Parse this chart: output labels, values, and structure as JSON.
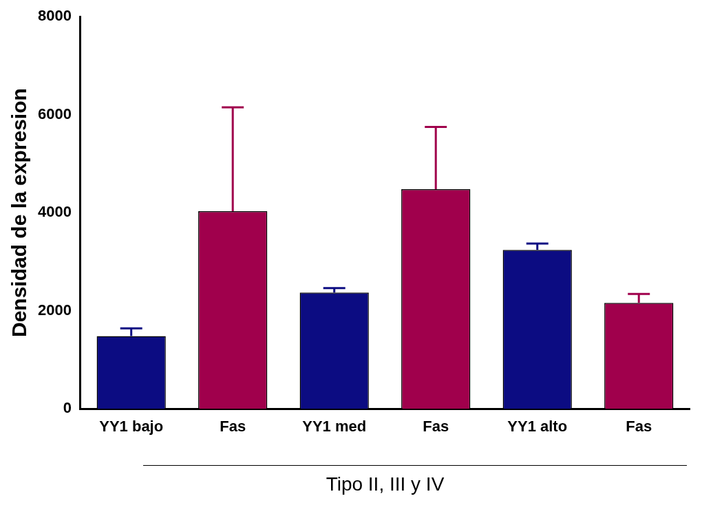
{
  "chart_data": {
    "type": "bar",
    "xlabel": "Tipo II, III y IV",
    "ylabel": "Densidad de la expresion",
    "categories": [
      "YY1 bajo",
      "Fas",
      "YY1 med",
      "Fas",
      "YY1 alto",
      "Fas"
    ],
    "values": [
      1480,
      4030,
      2370,
      4480,
      3240,
      2160
    ],
    "colors": [
      "#0c0c82",
      "#a0004c",
      "#0c0c82",
      "#a0004c",
      "#0c0c82",
      "#a0004c"
    ],
    "errors": [
      [
        1480,
        1640
      ],
      [
        4030,
        6150
      ],
      [
        2370,
        2460
      ],
      [
        4480,
        5750
      ],
      [
        3240,
        3370
      ],
      [
        2160,
        2340
      ]
    ],
    "ylim": [
      0,
      8000
    ],
    "yticks": [
      0,
      2000,
      4000,
      6000,
      8000
    ],
    "grid": false,
    "legend": false
  }
}
